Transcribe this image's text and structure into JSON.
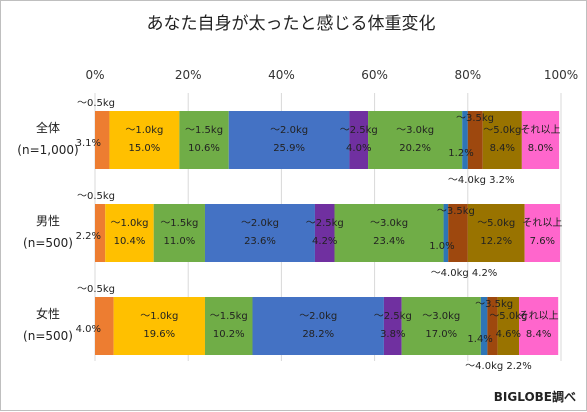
{
  "chart_data": {
    "type": "bar",
    "orientation": "horizontal",
    "stacked": "percent",
    "title": "あなた自身が太ったと感じる体重変化",
    "credit": "BIGLOBE調べ",
    "xlim": [
      0,
      100
    ],
    "x_ticks": [
      "0%",
      "20%",
      "40%",
      "60%",
      "80%",
      "100%"
    ],
    "categories": [
      {
        "line1": "全体",
        "line2": "(n=1,000)"
      },
      {
        "line1": "男性",
        "line2": "(n=500)"
      },
      {
        "line1": "女性",
        "line2": "(n=500)"
      }
    ],
    "series": [
      {
        "name": "～0.5kg",
        "color": "#ED7D31",
        "values": [
          3.1,
          2.2,
          4.0
        ],
        "labels": [
          "3.1%",
          "2.2%",
          "4.0%"
        ]
      },
      {
        "name": "～1.0kg",
        "color": "#FFC000",
        "values": [
          15.0,
          10.4,
          19.6
        ],
        "labels": [
          "15.0%",
          "10.4%",
          "19.6%"
        ]
      },
      {
        "name": "～1.5kg",
        "color": "#70AD47",
        "values": [
          10.6,
          11.0,
          10.2
        ],
        "labels": [
          "10.6%",
          "11.0%",
          "10.2%"
        ]
      },
      {
        "name": "～2.0kg",
        "color": "#4472C4",
        "values": [
          25.9,
          23.6,
          28.2
        ],
        "labels": [
          "25.9%",
          "23.6%",
          "28.2%"
        ]
      },
      {
        "name": "～2.5kg",
        "color": "#7030A0",
        "values": [
          4.0,
          4.2,
          3.8
        ],
        "labels": [
          "4.0%",
          "4.2%",
          "3.8%"
        ]
      },
      {
        "name": "～3.0kg",
        "color": "#70AD47",
        "values": [
          20.2,
          23.4,
          17.0
        ],
        "labels": [
          "20.2%",
          "23.4%",
          "17.0%"
        ]
      },
      {
        "name": "～3.5kg",
        "color": "#2E75B6",
        "values": [
          1.2,
          1.0,
          1.4
        ],
        "labels": [
          "1.2%",
          "1.0%",
          "1.4%"
        ]
      },
      {
        "name": "～4.0kg",
        "color": "#9E480E",
        "values": [
          3.2,
          4.2,
          2.2
        ],
        "labels": [
          "3.2%",
          "4.2%",
          "2.2%"
        ]
      },
      {
        "name": "～5.0kg",
        "color": "#997300",
        "values": [
          8.4,
          12.2,
          4.6
        ],
        "labels": [
          "8.4%",
          "12.2%",
          "4.6%"
        ]
      },
      {
        "name": "それ以上",
        "color": "#FF66CC",
        "values": [
          8.0,
          7.6,
          8.4
        ],
        "labels": [
          "8.0%",
          "7.6%",
          "8.4%"
        ]
      }
    ],
    "grid": true,
    "legend": "none"
  }
}
